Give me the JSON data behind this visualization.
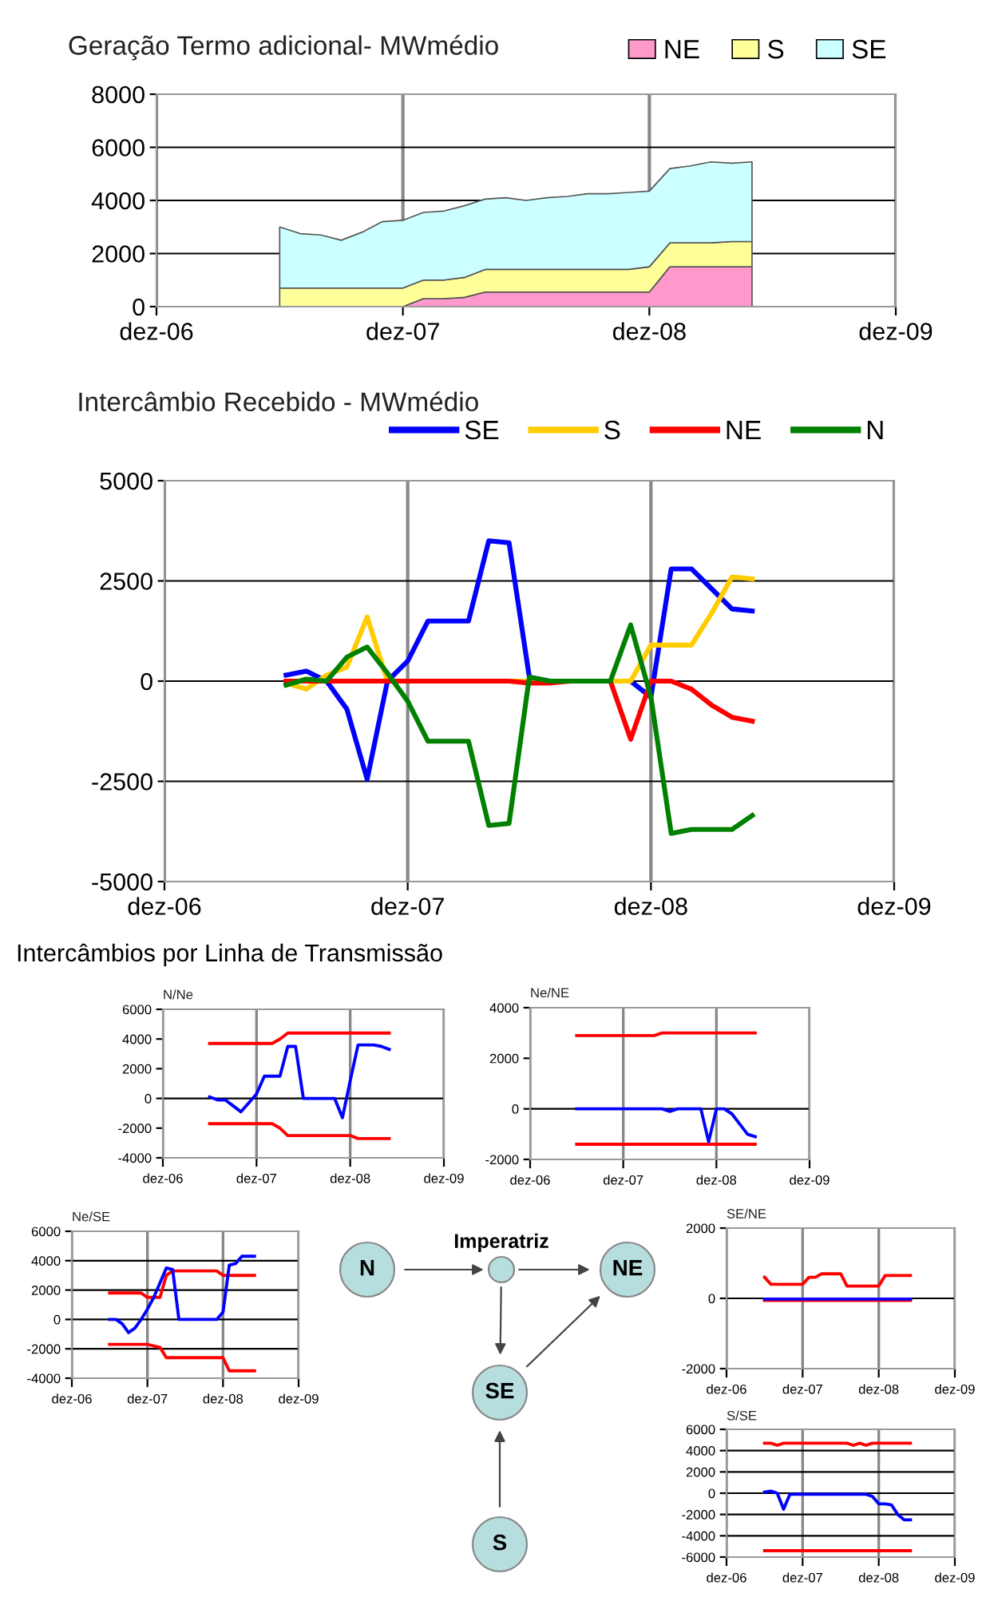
{
  "chart_data": [
    {
      "type": "area",
      "stacked": true,
      "title": "Geração Termo adicional- MWmédio",
      "legend": "top right",
      "grid": true,
      "x": [
        "2007-06",
        "2007-07",
        "2007-08",
        "2007-09",
        "2007-10",
        "2007-11",
        "2007-12",
        "2008-01",
        "2008-02",
        "2008-03",
        "2008-04",
        "2008-05",
        "2008-06",
        "2008-07",
        "2008-08",
        "2008-09",
        "2008-10",
        "2008-11",
        "2008-12",
        "2009-01",
        "2009-02",
        "2009-03",
        "2009-04",
        "2009-05"
      ],
      "xlim": [
        "2006-12",
        "2009-12"
      ],
      "xticks": [
        {
          "value": "2006-12",
          "label": "dez-06"
        },
        {
          "value": "2007-12",
          "label": "dez-07"
        },
        {
          "value": "2008-12",
          "label": "dez-08"
        },
        {
          "value": "2009-12",
          "label": "dez-09"
        }
      ],
      "ylim": [
        0,
        8000
      ],
      "yticks": [
        0,
        2000,
        4000,
        6000,
        8000
      ],
      "series": [
        {
          "name": "NE",
          "color": "#ff99cc",
          "values": [
            0,
            0,
            0,
            0,
            0,
            0,
            0,
            300,
            300,
            350,
            550,
            550,
            550,
            550,
            550,
            550,
            550,
            550,
            550,
            1500,
            1500,
            1500,
            1500,
            1500
          ]
        },
        {
          "name": "S",
          "color": "#ffff99",
          "values": [
            700,
            700,
            700,
            700,
            700,
            700,
            700,
            700,
            700,
            750,
            850,
            850,
            850,
            850,
            850,
            850,
            850,
            850,
            950,
            900,
            900,
            900,
            950,
            950
          ]
        },
        {
          "name": "SE",
          "color": "#ccffff",
          "values": [
            2300,
            2050,
            2000,
            1800,
            2100,
            2500,
            2550,
            2550,
            2600,
            2700,
            2650,
            2700,
            2600,
            2700,
            2750,
            2850,
            2850,
            2900,
            2850,
            2800,
            2900,
            3050,
            2950,
            3000
          ]
        }
      ]
    },
    {
      "type": "line",
      "title": "Intercâmbio Recebido - MWmédio",
      "legend": "top right",
      "grid": true,
      "x": [
        "2007-06",
        "2007-07",
        "2007-08",
        "2007-09",
        "2007-10",
        "2007-11",
        "2007-12",
        "2008-01",
        "2008-02",
        "2008-03",
        "2008-04",
        "2008-05",
        "2008-06",
        "2008-07",
        "2008-08",
        "2008-09",
        "2008-10",
        "2008-11",
        "2008-12",
        "2009-01",
        "2009-02",
        "2009-03",
        "2009-04",
        "2009-05"
      ],
      "xlim": [
        "2006-12",
        "2009-12"
      ],
      "xticks": [
        {
          "value": "2006-12",
          "label": "dez-06"
        },
        {
          "value": "2007-12",
          "label": "dez-07"
        },
        {
          "value": "2008-12",
          "label": "dez-08"
        },
        {
          "value": "2009-12",
          "label": "dez-09"
        }
      ],
      "ylim": [
        -5000,
        5000
      ],
      "yticks": [
        -5000,
        -2500,
        0,
        2500,
        5000
      ],
      "series": [
        {
          "name": "SE",
          "color": "#0000ff",
          "values": [
            150,
            250,
            0,
            -700,
            -2450,
            0,
            500,
            1500,
            1500,
            1500,
            3500,
            3450,
            100,
            0,
            0,
            0,
            0,
            0,
            -400,
            2800,
            2800,
            2300,
            1800,
            1750
          ]
        },
        {
          "name": "S",
          "color": "#ffcc00",
          "values": [
            -50,
            -200,
            150,
            350,
            1600,
            0,
            0,
            0,
            0,
            0,
            0,
            0,
            0,
            0,
            0,
            0,
            0,
            0,
            900,
            900,
            900,
            1700,
            2600,
            2550
          ]
        },
        {
          "name": "NE",
          "color": "#ff0000",
          "values": [
            0,
            0,
            0,
            0,
            0,
            0,
            0,
            0,
            0,
            0,
            0,
            0,
            -50,
            -50,
            0,
            0,
            0,
            -1450,
            0,
            0,
            -200,
            -600,
            -900,
            -1000
          ]
        },
        {
          "name": "N",
          "color": "#008000",
          "values": [
            -100,
            50,
            0,
            600,
            850,
            200,
            -500,
            -1500,
            -1500,
            -1500,
            -3600,
            -3550,
            100,
            0,
            0,
            0,
            0,
            1400,
            -400,
            -3800,
            -3700,
            -3700,
            -3700,
            -3350
          ]
        }
      ]
    },
    {
      "type": "line",
      "title": "N/Ne",
      "grid": "x",
      "ref_lines": [
        {
          "axis": "y",
          "value": 0
        }
      ],
      "annotations": [
        "Intercâmbios por Linha de Transmissão"
      ],
      "x": [
        "2007-06",
        "2007-07",
        "2007-08",
        "2007-09",
        "2007-10",
        "2007-11",
        "2007-12",
        "2008-01",
        "2008-02",
        "2008-03",
        "2008-04",
        "2008-05",
        "2008-06",
        "2008-07",
        "2008-08",
        "2008-09",
        "2008-10",
        "2008-11",
        "2008-12",
        "2009-01",
        "2009-02",
        "2009-03",
        "2009-04",
        "2009-05"
      ],
      "xlim": [
        "2006-12",
        "2009-12"
      ],
      "xticks": [
        {
          "value": "2006-12",
          "label": "dez-06"
        },
        {
          "value": "2007-12",
          "label": "dez-07"
        },
        {
          "value": "2008-12",
          "label": "dez-08"
        },
        {
          "value": "2009-12",
          "label": "dez-09"
        }
      ],
      "ylim": [
        -4000,
        6000
      ],
      "yticks": [
        -4000,
        -2000,
        0,
        2000,
        4000,
        6000
      ],
      "series": [
        {
          "color": "#ff0000",
          "values": [
            3700,
            3700,
            3700,
            3700,
            3700,
            3700,
            3700,
            3700,
            3700,
            4000,
            4400,
            4400,
            4400,
            4400,
            4400,
            4400,
            4400,
            4400,
            4400,
            4400,
            4400,
            4400,
            4400,
            4400
          ]
        },
        {
          "color": "#ff0000",
          "values": [
            -1700,
            -1700,
            -1700,
            -1700,
            -1700,
            -1700,
            -1700,
            -1700,
            -1700,
            -2000,
            -2500,
            -2500,
            -2500,
            -2500,
            -2500,
            -2500,
            -2500,
            -2500,
            -2500,
            -2700,
            -2700,
            -2700,
            -2700,
            -2700
          ]
        },
        {
          "color": "#0000ff",
          "values": [
            100,
            -100,
            -100,
            -500,
            -900,
            -300,
            300,
            1500,
            1500,
            1500,
            3500,
            3500,
            0,
            0,
            0,
            0,
            0,
            -1300,
            1200,
            3600,
            3600,
            3600,
            3500,
            3300
          ]
        }
      ]
    },
    {
      "type": "line",
      "title": "Ne/NE",
      "grid": "x",
      "ref_lines": [
        {
          "axis": "y",
          "value": 0
        }
      ],
      "x": [
        "2007-06",
        "2007-07",
        "2007-08",
        "2007-09",
        "2007-10",
        "2007-11",
        "2007-12",
        "2008-01",
        "2008-02",
        "2008-03",
        "2008-04",
        "2008-05",
        "2008-06",
        "2008-07",
        "2008-08",
        "2008-09",
        "2008-10",
        "2008-11",
        "2008-12",
        "2009-01",
        "2009-02",
        "2009-03",
        "2009-04",
        "2009-05"
      ],
      "xlim": [
        "2006-12",
        "2009-12"
      ],
      "xticks": [
        {
          "value": "2006-12",
          "label": "dez-06"
        },
        {
          "value": "2007-12",
          "label": "dez-07"
        },
        {
          "value": "2008-12",
          "label": "dez-08"
        },
        {
          "value": "2009-12",
          "label": "dez-09"
        }
      ],
      "ylim": [
        -2000,
        4000
      ],
      "yticks": [
        -2000,
        0,
        2000,
        4000
      ],
      "series": [
        {
          "color": "#ff0000",
          "values": [
            2900,
            2900,
            2900,
            2900,
            2900,
            2900,
            2900,
            2900,
            2900,
            2900,
            2900,
            3000,
            3000,
            3000,
            3000,
            3000,
            3000,
            3000,
            3000,
            3000,
            3000,
            3000,
            3000,
            3000
          ]
        },
        {
          "color": "#ff0000",
          "values": [
            -1400,
            -1400,
            -1400,
            -1400,
            -1400,
            -1400,
            -1400,
            -1400,
            -1400,
            -1400,
            -1400,
            -1400,
            -1400,
            -1400,
            -1400,
            -1400,
            -1400,
            -1400,
            -1400,
            -1400,
            -1400,
            -1400,
            -1400,
            -1400
          ]
        },
        {
          "color": "#0000ff",
          "values": [
            0,
            0,
            0,
            0,
            0,
            0,
            0,
            0,
            0,
            0,
            0,
            0,
            -100,
            0,
            0,
            0,
            0,
            -1300,
            0,
            0,
            -200,
            -600,
            -1000,
            -1100
          ]
        }
      ]
    },
    {
      "type": "line",
      "title": "Ne/SE",
      "grid": true,
      "x": [
        "2007-06",
        "2007-07",
        "2007-08",
        "2007-09",
        "2007-10",
        "2007-11",
        "2007-12",
        "2008-01",
        "2008-02",
        "2008-03",
        "2008-04",
        "2008-05",
        "2008-06",
        "2008-07",
        "2008-08",
        "2008-09",
        "2008-10",
        "2008-11",
        "2008-12",
        "2009-01",
        "2009-02",
        "2009-03",
        "2009-04",
        "2009-05"
      ],
      "xlim": [
        "2006-12",
        "2009-12"
      ],
      "xticks": [
        {
          "value": "2006-12",
          "label": "dez-06"
        },
        {
          "value": "2007-12",
          "label": "dez-07"
        },
        {
          "value": "2008-12",
          "label": "dez-08"
        },
        {
          "value": "2009-12",
          "label": "dez-09"
        }
      ],
      "ylim": [
        -4000,
        6000
      ],
      "yticks": [
        -4000,
        -2000,
        0,
        2000,
        4000,
        6000
      ],
      "series": [
        {
          "color": "#ff0000",
          "values": [
            1800,
            1800,
            1800,
            1800,
            1800,
            1800,
            1500,
            1500,
            1500,
            3000,
            3300,
            3300,
            3300,
            3300,
            3300,
            3300,
            3300,
            3300,
            3000,
            3000,
            3000,
            3000,
            3000,
            3000
          ]
        },
        {
          "color": "#ff0000",
          "values": [
            -1700,
            -1700,
            -1700,
            -1700,
            -1700,
            -1700,
            -1700,
            -1800,
            -1900,
            -2600,
            -2600,
            -2600,
            -2600,
            -2600,
            -2600,
            -2600,
            -2600,
            -2600,
            -2600,
            -3500,
            -3500,
            -3500,
            -3500,
            -3500
          ]
        },
        {
          "color": "#0000ff",
          "values": [
            0,
            0,
            -300,
            -900,
            -600,
            0,
            700,
            1500,
            2500,
            3500,
            3400,
            0,
            0,
            0,
            0,
            0,
            0,
            0,
            500,
            3700,
            3800,
            4300,
            4300,
            4300
          ]
        }
      ]
    },
    {
      "type": "line",
      "title": "SE/NE",
      "grid": "x",
      "ref_lines": [
        {
          "axis": "y",
          "value": 0
        }
      ],
      "x": [
        "2007-06",
        "2007-07",
        "2007-08",
        "2007-09",
        "2007-10",
        "2007-11",
        "2007-12",
        "2008-01",
        "2008-02",
        "2008-03",
        "2008-04",
        "2008-05",
        "2008-06",
        "2008-07",
        "2008-08",
        "2008-09",
        "2008-10",
        "2008-11",
        "2008-12",
        "2009-01",
        "2009-02",
        "2009-03",
        "2009-04",
        "2009-05"
      ],
      "xlim": [
        "2006-12",
        "2009-12"
      ],
      "xticks": [
        {
          "value": "2006-12",
          "label": "dez-06"
        },
        {
          "value": "2007-12",
          "label": "dez-07"
        },
        {
          "value": "2008-12",
          "label": "dez-08"
        },
        {
          "value": "2009-12",
          "label": "dez-09"
        }
      ],
      "ylim": [
        -2000,
        2000
      ],
      "yticks": [
        -2000,
        0,
        2000
      ],
      "series": [
        {
          "color": "#ff0000",
          "values": [
            600,
            400,
            400,
            400,
            400,
            400,
            400,
            600,
            600,
            700,
            700,
            700,
            700,
            350,
            350,
            350,
            350,
            350,
            350,
            650,
            650,
            650,
            650,
            650
          ]
        },
        {
          "color": "#ff0000",
          "values": [
            -60,
            -60,
            -60,
            -60,
            -60,
            -60,
            -60,
            -60,
            -60,
            -60,
            -60,
            -60,
            -60,
            -60,
            -60,
            -60,
            -60,
            -60,
            -60,
            -60,
            -60,
            -60,
            -60,
            -60
          ]
        },
        {
          "color": "#0000ff",
          "values": [
            -20,
            -20,
            -20,
            -20,
            -20,
            -20,
            -20,
            -20,
            -20,
            -20,
            -20,
            -20,
            -20,
            -20,
            -20,
            -20,
            -20,
            -20,
            -20,
            -20,
            -20,
            -20,
            -20,
            -20
          ]
        }
      ]
    },
    {
      "type": "line",
      "title": "S/SE",
      "grid": true,
      "x": [
        "2007-06",
        "2007-07",
        "2007-08",
        "2007-09",
        "2007-10",
        "2007-11",
        "2007-12",
        "2008-01",
        "2008-02",
        "2008-03",
        "2008-04",
        "2008-05",
        "2008-06",
        "2008-07",
        "2008-08",
        "2008-09",
        "2008-10",
        "2008-11",
        "2008-12",
        "2009-01",
        "2009-02",
        "2009-03",
        "2009-04",
        "2009-05"
      ],
      "xlim": [
        "2006-12",
        "2009-12"
      ],
      "xticks": [
        {
          "value": "2006-12",
          "label": "dez-06"
        },
        {
          "value": "2007-12",
          "label": "dez-07"
        },
        {
          "value": "2008-12",
          "label": "dez-08"
        },
        {
          "value": "2009-12",
          "label": "dez-09"
        }
      ],
      "ylim": [
        -6000,
        6000
      ],
      "yticks": [
        -6000,
        -4000,
        -2000,
        0,
        2000,
        4000,
        6000
      ],
      "series": [
        {
          "color": "#ff0000",
          "values": [
            4700,
            4700,
            4500,
            4700,
            4700,
            4700,
            4700,
            4700,
            4700,
            4700,
            4700,
            4700,
            4700,
            4700,
            4500,
            4700,
            4500,
            4700,
            4700,
            4700,
            4700,
            4700,
            4700,
            4700
          ]
        },
        {
          "color": "#ff0000",
          "values": [
            -5400,
            -5400,
            -5400,
            -5400,
            -5400,
            -5400,
            -5400,
            -5400,
            -5400,
            -5400,
            -5400,
            -5400,
            -5400,
            -5400,
            -5400,
            -5400,
            -5400,
            -5400,
            -5400,
            -5400,
            -5400,
            -5400,
            -5400,
            -5400
          ]
        },
        {
          "color": "#0000ff",
          "values": [
            100,
            200,
            0,
            -1500,
            -100,
            -100,
            -100,
            -100,
            -100,
            -100,
            -100,
            -100,
            -100,
            -100,
            -100,
            -100,
            -100,
            -300,
            -1000,
            -1000,
            -1100,
            -2000,
            -2500,
            -2500
          ]
        }
      ]
    },
    {
      "type": "other",
      "annotations": [
        "Imperatriz",
        "N",
        "NE",
        "SE",
        "S"
      ]
    }
  ]
}
